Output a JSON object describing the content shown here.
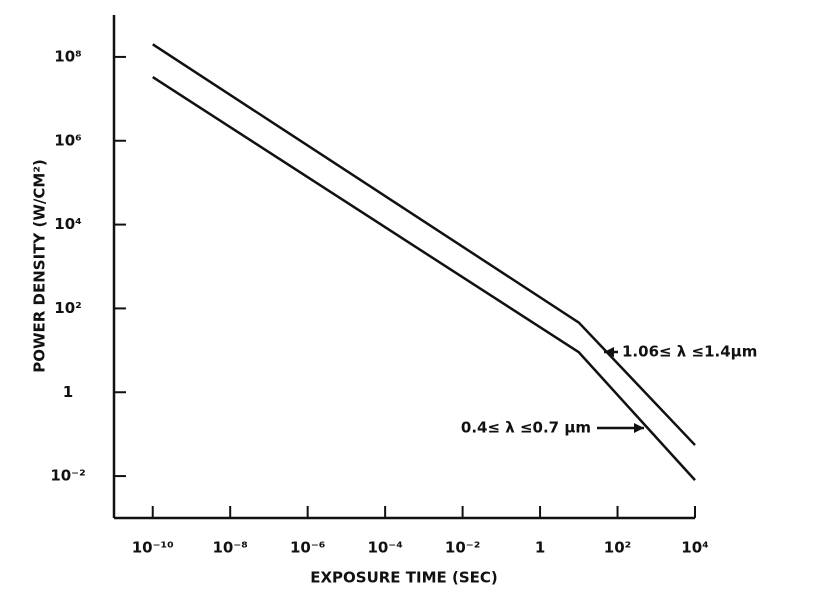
{
  "chart_data": {
    "type": "line",
    "xlabel": "EXPOSURE TIME (SEC)",
    "ylabel": "POWER DENSITY (W/CM²)",
    "xscale": "log",
    "yscale": "log",
    "xlim": [
      1e-11,
      10000.0
    ],
    "ylim": [
      0.001,
      1000000000.0
    ],
    "xticks": [
      {
        "value": 1e-10,
        "label": "10⁻¹⁰"
      },
      {
        "value": 1e-08,
        "label": "10⁻⁸"
      },
      {
        "value": 1e-06,
        "label": "10⁻⁶"
      },
      {
        "value": 0.0001,
        "label": "10⁻⁴"
      },
      {
        "value": 0.01,
        "label": "10⁻²"
      },
      1,
      {
        "value": 100,
        "label": "10²"
      },
      {
        "value": 10000,
        "label": "10⁴"
      }
    ],
    "yticks": [
      {
        "value": 0.01,
        "label": "10⁻²"
      },
      1,
      {
        "value": 100,
        "label": "10²"
      },
      {
        "value": 10000,
        "label": "10⁴"
      },
      {
        "value": 1000000.0,
        "label": "10⁶"
      },
      {
        "value": 100000000.0,
        "label": "10⁸"
      }
    ],
    "series": [
      {
        "name": "1.06≤ λ ≤1.4μm",
        "color": "#111111",
        "x": [
          1e-10,
          10,
          10000
        ],
        "values": [
          200000000.0,
          46,
          0.055
        ]
      },
      {
        "name": "0.4≤ λ ≤0.7 μm",
        "color": "#111111",
        "x": [
          1e-10,
          10,
          10000
        ],
        "values": [
          33000000.0,
          9,
          0.008
        ]
      }
    ]
  }
}
